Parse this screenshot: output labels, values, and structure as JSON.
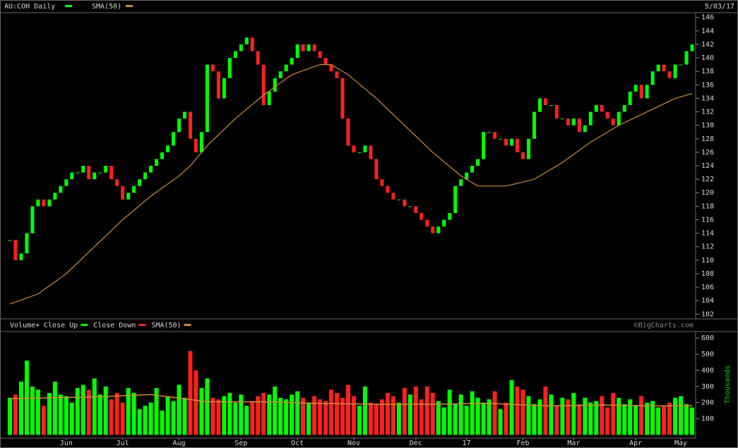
{
  "chart_data": [
    {
      "type": "candlestick",
      "title": "AU:COH Daily",
      "date": "5/03/17",
      "series": [
        {
          "name": "AU:COH Daily",
          "color": "#00ff00",
          "down_color": "#ff2020",
          "values": [
            113,
            110,
            111,
            114,
            118,
            119,
            118,
            119,
            120,
            121,
            122,
            123,
            123,
            124,
            122,
            123,
            123,
            124,
            122,
            121,
            119,
            120,
            121,
            122,
            123,
            124,
            125,
            126,
            127,
            129,
            131,
            132,
            128,
            126,
            129,
            139,
            138,
            134,
            137,
            140,
            141,
            142,
            143,
            141,
            139,
            133,
            135,
            137,
            138,
            139,
            140,
            142,
            141,
            142,
            141,
            140,
            139,
            138,
            137,
            131,
            127,
            126,
            126,
            127,
            125,
            122,
            121,
            120,
            119,
            119,
            118,
            118,
            117,
            116,
            115,
            114,
            115,
            116,
            117,
            121,
            122,
            123,
            124,
            125,
            129,
            129,
            128,
            128,
            127,
            128,
            126,
            125,
            128,
            132,
            134,
            133,
            133,
            131,
            131,
            130,
            131,
            129,
            130,
            132,
            133,
            132,
            131,
            130,
            132,
            133,
            135,
            136,
            134,
            136,
            138,
            139,
            138,
            137,
            139,
            139,
            141,
            142
          ]
        },
        {
          "name": "SMA(50)",
          "color": "#d08c3c",
          "x": [
            0,
            5,
            10,
            15,
            20,
            25,
            30,
            32,
            35,
            40,
            45,
            50,
            55,
            57,
            60,
            65,
            70,
            75,
            80,
            83,
            88,
            93,
            98,
            103,
            108,
            113,
            118,
            121
          ],
          "values": [
            103.5,
            105,
            108,
            112,
            116,
            119.5,
            122.5,
            124,
            127,
            131,
            134.5,
            137.5,
            139,
            139,
            137.5,
            134,
            130,
            126,
            122.5,
            121,
            121,
            122,
            124.5,
            127.5,
            130,
            132,
            134,
            134.7
          ]
        }
      ],
      "ylim": [
        101.3,
        146.7
      ],
      "yticks": [
        102,
        104,
        106,
        108,
        110,
        112,
        114,
        116,
        118,
        120,
        122,
        124,
        126,
        128,
        130,
        132,
        134,
        136,
        138,
        140,
        142,
        144,
        146
      ],
      "grid": false
    },
    {
      "type": "bar",
      "title": "Volume+",
      "y_label": "Thousands",
      "credit": "©BigCharts.com",
      "legend": [
        {
          "name": "Close Up",
          "color": "#00ff00"
        },
        {
          "name": "Close Down",
          "color": "#ff2020"
        },
        {
          "name": "SMA(50)",
          "color": "#d08c3c"
        }
      ],
      "values": [
        230,
        250,
        330,
        460,
        300,
        280,
        180,
        260,
        330,
        250,
        240,
        200,
        290,
        310,
        280,
        350,
        250,
        300,
        220,
        260,
        200,
        290,
        260,
        160,
        180,
        200,
        290,
        150,
        240,
        210,
        310,
        230,
        520,
        400,
        290,
        350,
        230,
        220,
        240,
        260,
        200,
        250,
        180,
        210,
        240,
        260,
        250,
        300,
        230,
        220,
        250,
        270,
        230,
        200,
        240,
        220,
        210,
        280,
        260,
        230,
        310,
        240,
        180,
        300,
        200,
        190,
        220,
        260,
        240,
        200,
        290,
        250,
        300,
        220,
        300,
        260,
        210,
        170,
        280,
        190,
        250,
        180,
        270,
        230,
        200,
        220,
        270,
        160,
        200,
        340,
        300,
        280,
        240,
        190,
        220,
        300,
        250,
        180,
        230,
        220,
        260,
        190,
        230,
        200,
        210,
        240,
        170,
        260,
        230,
        190,
        220,
        180,
        240,
        200,
        210,
        170,
        180,
        200,
        230,
        240,
        190,
        170
      ],
      "sma": {
        "x": [
          0,
          15,
          25,
          35,
          45,
          55,
          65,
          75,
          85,
          95,
          105,
          115,
          121
        ],
        "values": [
          225,
          235,
          250,
          205,
          205,
          195,
          190,
          190,
          195,
          180,
          185,
          180,
          180
        ]
      },
      "ylim": [
        -20,
        640
      ],
      "yticks": [
        100,
        200,
        300,
        400,
        500,
        600
      ],
      "xlim": [
        -0.5,
        121.5
      ],
      "xticks": [
        {
          "value": 10,
          "label": "Jun"
        },
        {
          "value": 20,
          "label": "Jul"
        },
        {
          "value": 30,
          "label": "Aug"
        },
        {
          "value": 41,
          "label": "Sep"
        },
        {
          "value": 51,
          "label": "Oct"
        },
        {
          "value": 61,
          "label": "Nov"
        },
        {
          "value": 72,
          "label": "Dec"
        },
        {
          "value": 81,
          "label": "17"
        },
        {
          "value": 91,
          "label": "Feb"
        },
        {
          "value": 100,
          "label": "Mar"
        },
        {
          "value": 111,
          "label": "Apr"
        },
        {
          "value": 119,
          "label": "May"
        }
      ]
    }
  ]
}
